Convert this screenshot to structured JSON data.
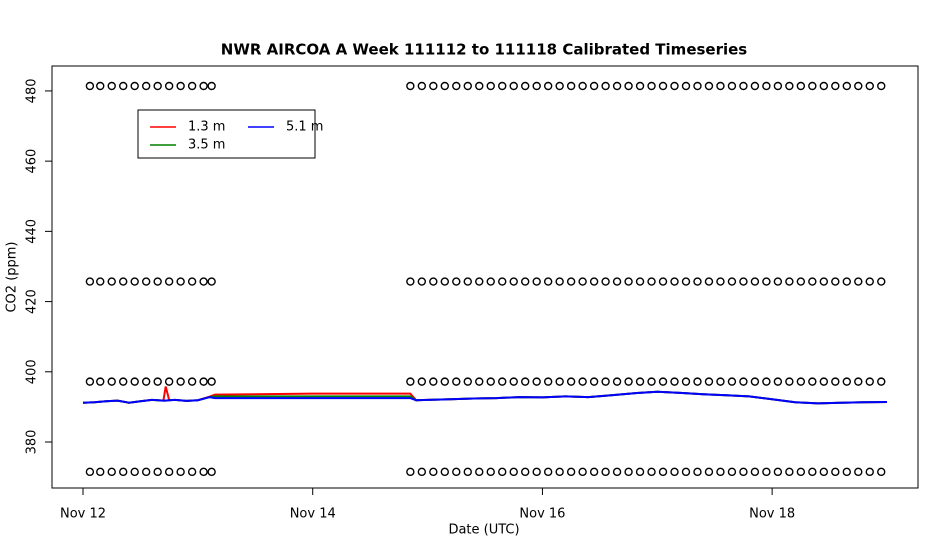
{
  "chart_data": {
    "type": "line",
    "title": "NWR AIRCOA A  Week 111112 to 111118  Calibrated Timeseries",
    "x_label": "Date (UTC)",
    "y_label": "CO2 (ppm)",
    "xlim": [
      11.73,
      19.27
    ],
    "xticks": [
      {
        "value": 12,
        "label": "Nov 12"
      },
      {
        "value": 14,
        "label": "Nov 14"
      },
      {
        "value": 16,
        "label": "Nov 16"
      },
      {
        "value": 18,
        "label": "Nov 18"
      }
    ],
    "ylim": [
      366.9,
      487.1
    ],
    "yticks": [
      380,
      400,
      420,
      440,
      460,
      480
    ],
    "x": [
      12.0,
      12.1,
      12.2,
      12.3,
      12.4,
      12.5,
      12.6,
      12.7,
      12.72,
      12.75,
      12.8,
      12.9,
      13.0,
      13.1,
      13.15,
      14.0,
      14.85,
      14.9,
      15.0,
      15.2,
      15.4,
      15.6,
      15.8,
      16.0,
      16.2,
      16.4,
      16.6,
      16.8,
      17.0,
      17.2,
      17.4,
      17.6,
      17.8,
      18.0,
      18.2,
      18.4,
      18.6,
      18.8,
      19.0
    ],
    "series": [
      {
        "name": "1.3 m",
        "color": "#ff0000",
        "values": [
          391.2,
          391.3,
          391.6,
          391.8,
          391.2,
          391.6,
          392.0,
          391.8,
          395.8,
          391.9,
          392.0,
          391.7,
          391.9,
          392.9,
          393.5,
          393.8,
          393.8,
          391.9,
          392.0,
          392.2,
          392.4,
          392.5,
          392.8,
          392.7,
          393.0,
          392.8,
          393.3,
          393.9,
          394.3,
          394.0,
          393.6,
          393.3,
          393.0,
          392.2,
          391.3,
          391.0,
          391.2,
          391.3,
          391.4
        ]
      },
      {
        "name": "3.5 m",
        "color": "#008000",
        "values": [
          391.2,
          391.3,
          391.6,
          391.8,
          391.2,
          391.6,
          392.0,
          391.8,
          391.8,
          391.9,
          392.0,
          391.7,
          391.9,
          392.8,
          393.0,
          393.0,
          393.0,
          391.9,
          392.0,
          392.2,
          392.4,
          392.5,
          392.8,
          392.7,
          393.0,
          392.8,
          393.3,
          393.9,
          394.3,
          394.0,
          393.6,
          393.3,
          393.0,
          392.2,
          391.3,
          391.0,
          391.2,
          391.3,
          391.4
        ]
      },
      {
        "name": "5.1 m",
        "color": "#0000ff",
        "values": [
          391.2,
          391.3,
          391.6,
          391.8,
          391.2,
          391.6,
          392.0,
          391.8,
          391.8,
          391.9,
          392.0,
          391.7,
          391.9,
          392.8,
          392.5,
          392.5,
          392.5,
          391.9,
          392.0,
          392.2,
          392.4,
          392.5,
          392.8,
          392.7,
          393.0,
          392.8,
          393.3,
          393.9,
          394.3,
          394.0,
          393.6,
          393.3,
          393.0,
          392.2,
          391.3,
          391.0,
          391.2,
          391.3,
          391.4
        ]
      }
    ],
    "markers": {
      "color": "#000000",
      "x": [
        12.06,
        12.15,
        12.25,
        12.35,
        12.45,
        12.55,
        12.65,
        12.75,
        12.85,
        12.95,
        13.05,
        13.12,
        14.85,
        14.95,
        15.05,
        15.15,
        15.25,
        15.35,
        15.45,
        15.55,
        15.65,
        15.75,
        15.85,
        15.95,
        16.05,
        16.15,
        16.25,
        16.35,
        16.45,
        16.55,
        16.65,
        16.75,
        16.85,
        16.95,
        17.05,
        17.15,
        17.25,
        17.35,
        17.45,
        17.55,
        17.65,
        17.75,
        17.85,
        17.95,
        18.05,
        18.15,
        18.25,
        18.35,
        18.45,
        18.55,
        18.65,
        18.75,
        18.85,
        18.95
      ],
      "levels": [
        371.5,
        397.2,
        425.7,
        481.4
      ]
    },
    "legend": "top-left"
  }
}
